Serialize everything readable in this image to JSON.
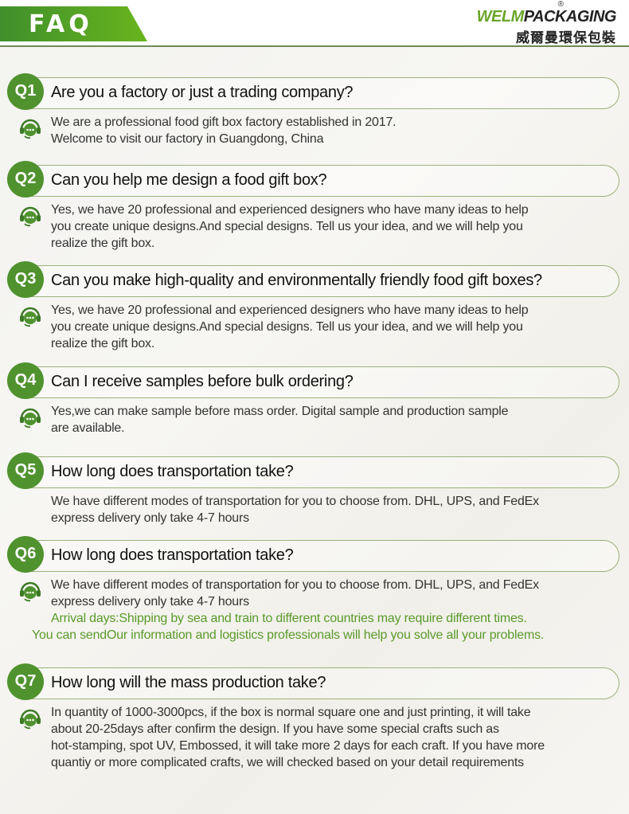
{
  "header": {
    "title": "FAQ",
    "logo_text_en_part1": "WELM",
    "logo_text_en_part2": "PACKAGING",
    "logo_registered": "®",
    "logo_text_cn": "威爾曼環保包裝",
    "accent_color": "#4f922e"
  },
  "faq": [
    {
      "num": "Q1",
      "question": "Are you a factory or just a trading company?",
      "icon": "chat-support-icon",
      "answer": [
        "We are a professional food gift box factory established in 2017.",
        "Welcome to visit our factory in Guangdong, China"
      ]
    },
    {
      "num": "Q2",
      "question": "Can you help me design a food gift box?",
      "icon": "chat-support-icon",
      "answer": [
        "Yes, we have 20 professional and experienced designers who have many ideas to help",
        "you create unique designs.And special designs. Tell us your idea, and we will help you",
        "realize the gift box."
      ]
    },
    {
      "num": "Q3",
      "question": "Can you make high-quality and environmentally friendly food gift boxes?",
      "icon": "chat-support-icon",
      "answer": [
        "Yes, we have 20 professional and experienced designers who have many ideas to help",
        "you create unique designs.And special designs. Tell us your idea, and we will help you",
        "realize the gift box."
      ]
    },
    {
      "num": "Q4",
      "question": "Can I receive samples before bulk ordering?",
      "icon": "chat-support-icon",
      "answer": [
        "Yes,we can make sample before mass order. Digital sample and production sample",
        "are available."
      ]
    },
    {
      "num": "Q5",
      "question": "How long does transportation take?",
      "icon": "",
      "answer": [
        "We have different modes of transportation for you to choose from. DHL, UPS, and FedEx",
        "express delivery only take 4-7 hours"
      ]
    },
    {
      "num": "Q6",
      "question": "How long does transportation take?",
      "icon": "chat-support-icon",
      "answer": [
        "We have different modes of transportation for you to choose from. DHL, UPS, and FedEx",
        "express delivery only take 4-7 hours"
      ],
      "note": [
        "Arrival days:Shipping by sea and train to different countries may require different times.",
        "You can sendOur information and logistics professionals will help you solve all your problems."
      ]
    },
    {
      "num": "Q7",
      "question": "How long will the mass production take?",
      "icon": "chat-support-icon",
      "answer": [
        "In quantity of 1000-3000pcs, if the box is normal square one and just printing, it will take",
        "about 20-25days after confirm the design. If you have some special crafts such as",
        "hot-stamping, spot UV, Embossed, it will take more 2 days for each craft. If you have more",
        "quantiy or more complicated crafts, we will checked based on your detail requirements"
      ]
    }
  ]
}
